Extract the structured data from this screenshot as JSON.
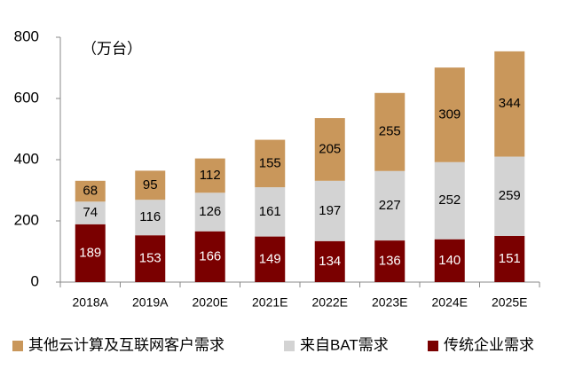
{
  "chart_data": {
    "type": "stacked_bar",
    "annotation": "（万台）",
    "categories": [
      "2018A",
      "2019A",
      "2020E",
      "2021E",
      "2022E",
      "2023E",
      "2024E",
      "2025E"
    ],
    "series": [
      {
        "name": "其他云计算及互联网客户需求",
        "color": "#c9975b",
        "values": [
          68,
          95,
          112,
          155,
          205,
          255,
          309,
          344
        ]
      },
      {
        "name": "来自BAT需求",
        "color": "#d3d3d3",
        "values": [
          74,
          116,
          126,
          161,
          197,
          227,
          252,
          259
        ]
      },
      {
        "name": "传统企业需求",
        "color": "#7a0000",
        "values": [
          189,
          153,
          166,
          149,
          134,
          136,
          140,
          151
        ]
      }
    ],
    "ylim": [
      0,
      800
    ],
    "yticks": [
      0,
      200,
      400,
      600,
      800
    ],
    "legend": "bottom"
  }
}
